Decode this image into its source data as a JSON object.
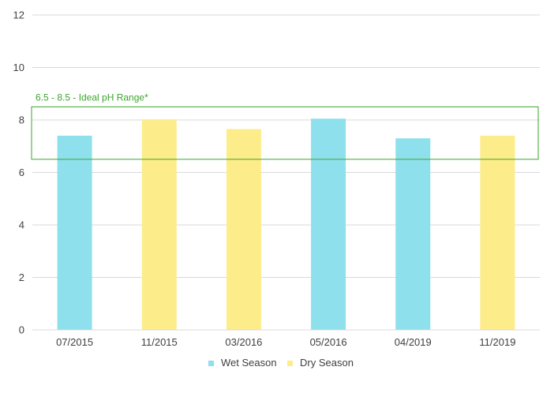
{
  "chart_data": {
    "type": "bar",
    "categories": [
      "07/2015",
      "11/2015",
      "03/2016",
      "05/2016",
      "04/2019",
      "11/2019"
    ],
    "values": [
      7.4,
      8.0,
      7.65,
      8.05,
      7.3,
      7.4
    ],
    "point_series": [
      "Wet Season",
      "Dry Season",
      "Dry Season",
      "Wet Season",
      "Wet Season",
      "Dry Season"
    ],
    "series": [
      {
        "name": "Wet Season",
        "color": "#8EE0EC"
      },
      {
        "name": "Dry Season",
        "color": "#FDEC8A"
      }
    ],
    "title": "",
    "xlabel": "",
    "ylabel": "",
    "ylim": [
      0,
      12
    ],
    "yticks": [
      0,
      2,
      4,
      6,
      8,
      10,
      12
    ],
    "grid": true,
    "legend_position": "bottom",
    "annotation": {
      "label": "6.5 - 8.5 - Ideal pH Range*",
      "range": [
        6.5,
        8.5
      ],
      "color": "#3AA62B"
    }
  }
}
